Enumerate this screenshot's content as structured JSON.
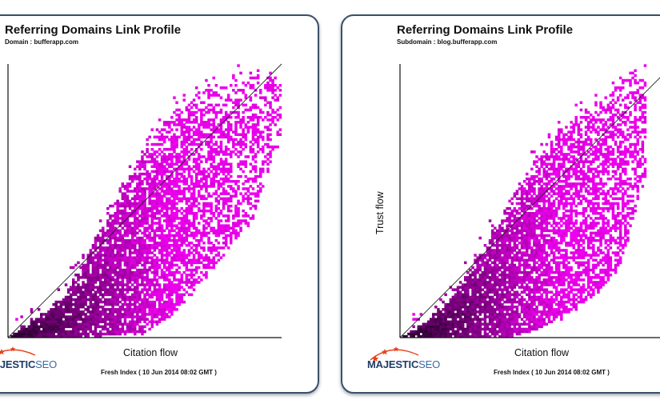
{
  "colors": {
    "background": "#ffffff",
    "panel_border": "#3a5068",
    "point": "#ee00ee",
    "point_dense": "#1a0020",
    "logo_navy": "#1f3c67",
    "logo_blue": "#3a6aa5",
    "logo_star": "#e8401c"
  },
  "panels": [
    {
      "title": "Referring Domains Link Profile",
      "subtitle": "Domain : bufferapp.com",
      "x_axis_label": "Citation flow",
      "y_axis_label": "",
      "index_label": "Fresh Index ( 10 Jun 2014 08:02 GMT )",
      "logo": {
        "strong": "MAJESTIC",
        "light": "SEO",
        "icon": "majestic-star-swoosh-icon"
      }
    },
    {
      "title": "Referring Domains Link Profile",
      "subtitle": "Subdomain : blog.bufferapp.com",
      "x_axis_label": "Citation flow",
      "y_axis_label": "Trust flow",
      "index_label": "Fresh Index ( 10 Jun 2014 08:02 GMT )",
      "logo": {
        "strong": "MAJESTIC",
        "light": "SEO",
        "icon": "majestic-star-swoosh-icon"
      }
    }
  ],
  "chart_data": [
    {
      "type": "heatmap",
      "title": "Referring Domains Link Profile",
      "subtitle": "Domain : bufferapp.com",
      "xlabel": "Citation flow",
      "ylabel": "",
      "xlim": [
        0,
        100
      ],
      "ylim": [
        0,
        100
      ],
      "grid": false,
      "reference_line": {
        "from": [
          0,
          0
        ],
        "to": [
          100,
          100
        ]
      },
      "density_ridge": [
        {
          "x": 10,
          "lo": 0,
          "hi": 7
        },
        {
          "x": 20,
          "lo": 0,
          "hi": 15
        },
        {
          "x": 30,
          "lo": 0,
          "hi": 32
        },
        {
          "x": 40,
          "lo": 1,
          "hi": 51
        },
        {
          "x": 50,
          "lo": 2,
          "hi": 68
        },
        {
          "x": 60,
          "lo": 8,
          "hi": 82
        },
        {
          "x": 70,
          "lo": 20,
          "hi": 90
        },
        {
          "x": 80,
          "lo": 30,
          "hi": 93
        },
        {
          "x": 90,
          "lo": 45,
          "hi": 98
        },
        {
          "x": 100,
          "lo": 75,
          "hi": 100
        }
      ]
    },
    {
      "type": "heatmap",
      "title": "Referring Domains Link Profile",
      "subtitle": "Subdomain : blog.bufferapp.com",
      "xlabel": "Citation flow",
      "ylabel": "Trust flow",
      "xlim": [
        0,
        100
      ],
      "ylim": [
        0,
        100
      ],
      "grid": false,
      "reference_line": {
        "from": [
          0,
          0
        ],
        "to": [
          100,
          100
        ]
      },
      "density_ridge": [
        {
          "x": 10,
          "lo": 0,
          "hi": 6
        },
        {
          "x": 20,
          "lo": 0,
          "hi": 16
        },
        {
          "x": 30,
          "lo": 0,
          "hi": 32
        },
        {
          "x": 40,
          "lo": 0,
          "hi": 50
        },
        {
          "x": 50,
          "lo": 3,
          "hi": 66
        },
        {
          "x": 60,
          "lo": 8,
          "hi": 78
        },
        {
          "x": 70,
          "lo": 15,
          "hi": 84
        },
        {
          "x": 80,
          "lo": 25,
          "hi": 92
        },
        {
          "x": 90,
          "lo": 60,
          "hi": 100
        }
      ]
    }
  ]
}
